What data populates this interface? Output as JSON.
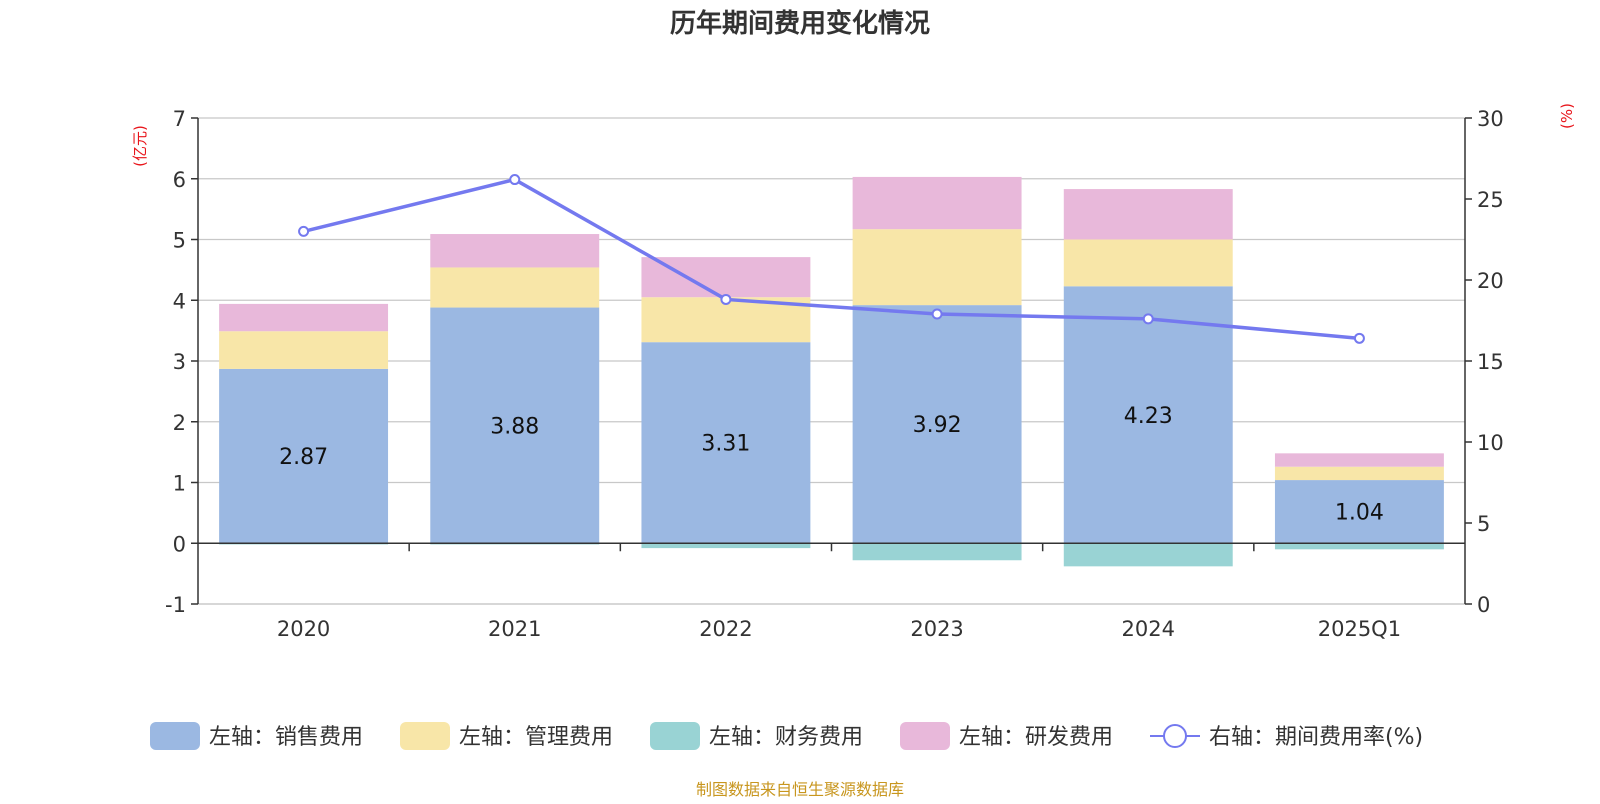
{
  "chart_data": {
    "type": "bar",
    "title": "历年期间费用变化情况",
    "categories": [
      "2020",
      "2021",
      "2022",
      "2023",
      "2024",
      "2025Q1"
    ],
    "left_axis": {
      "unit": "(亿元)",
      "ylim": [
        -1,
        7
      ],
      "ticks": [
        -1,
        0,
        1,
        2,
        3,
        4,
        5,
        6,
        7
      ]
    },
    "right_axis": {
      "unit": "(%)",
      "ylim": [
        0,
        30
      ],
      "ticks": [
        0,
        5,
        10,
        15,
        20,
        25,
        30
      ]
    },
    "series": [
      {
        "name": "左轴：销售费用",
        "axis": "left",
        "stack": true,
        "color": "#9bb8e2",
        "values": [
          2.87,
          3.88,
          3.31,
          3.92,
          4.23,
          1.04
        ],
        "show_labels": true
      },
      {
        "name": "左轴：管理费用",
        "axis": "left",
        "stack": true,
        "color": "#f8e6a8",
        "values": [
          0.62,
          0.66,
          0.74,
          1.25,
          0.77,
          0.22
        ]
      },
      {
        "name": "左轴：财务费用",
        "axis": "left",
        "stack": true,
        "color": "#99d3d4",
        "values": [
          -0.02,
          -0.02,
          -0.08,
          -0.28,
          -0.38,
          -0.1
        ]
      },
      {
        "name": "左轴：研发费用",
        "axis": "left",
        "stack": true,
        "color": "#e8b8da",
        "values": [
          0.45,
          0.55,
          0.66,
          0.86,
          0.83,
          0.22
        ]
      },
      {
        "name": "右轴：期间费用率(%)",
        "axis": "right",
        "type": "line",
        "color": "#7479ef",
        "values": [
          23.0,
          26.2,
          18.8,
          17.9,
          17.6,
          16.4
        ]
      }
    ],
    "grid": true,
    "legend_position": "bottom",
    "source_note": "制图数据来自恒生聚源数据库"
  }
}
